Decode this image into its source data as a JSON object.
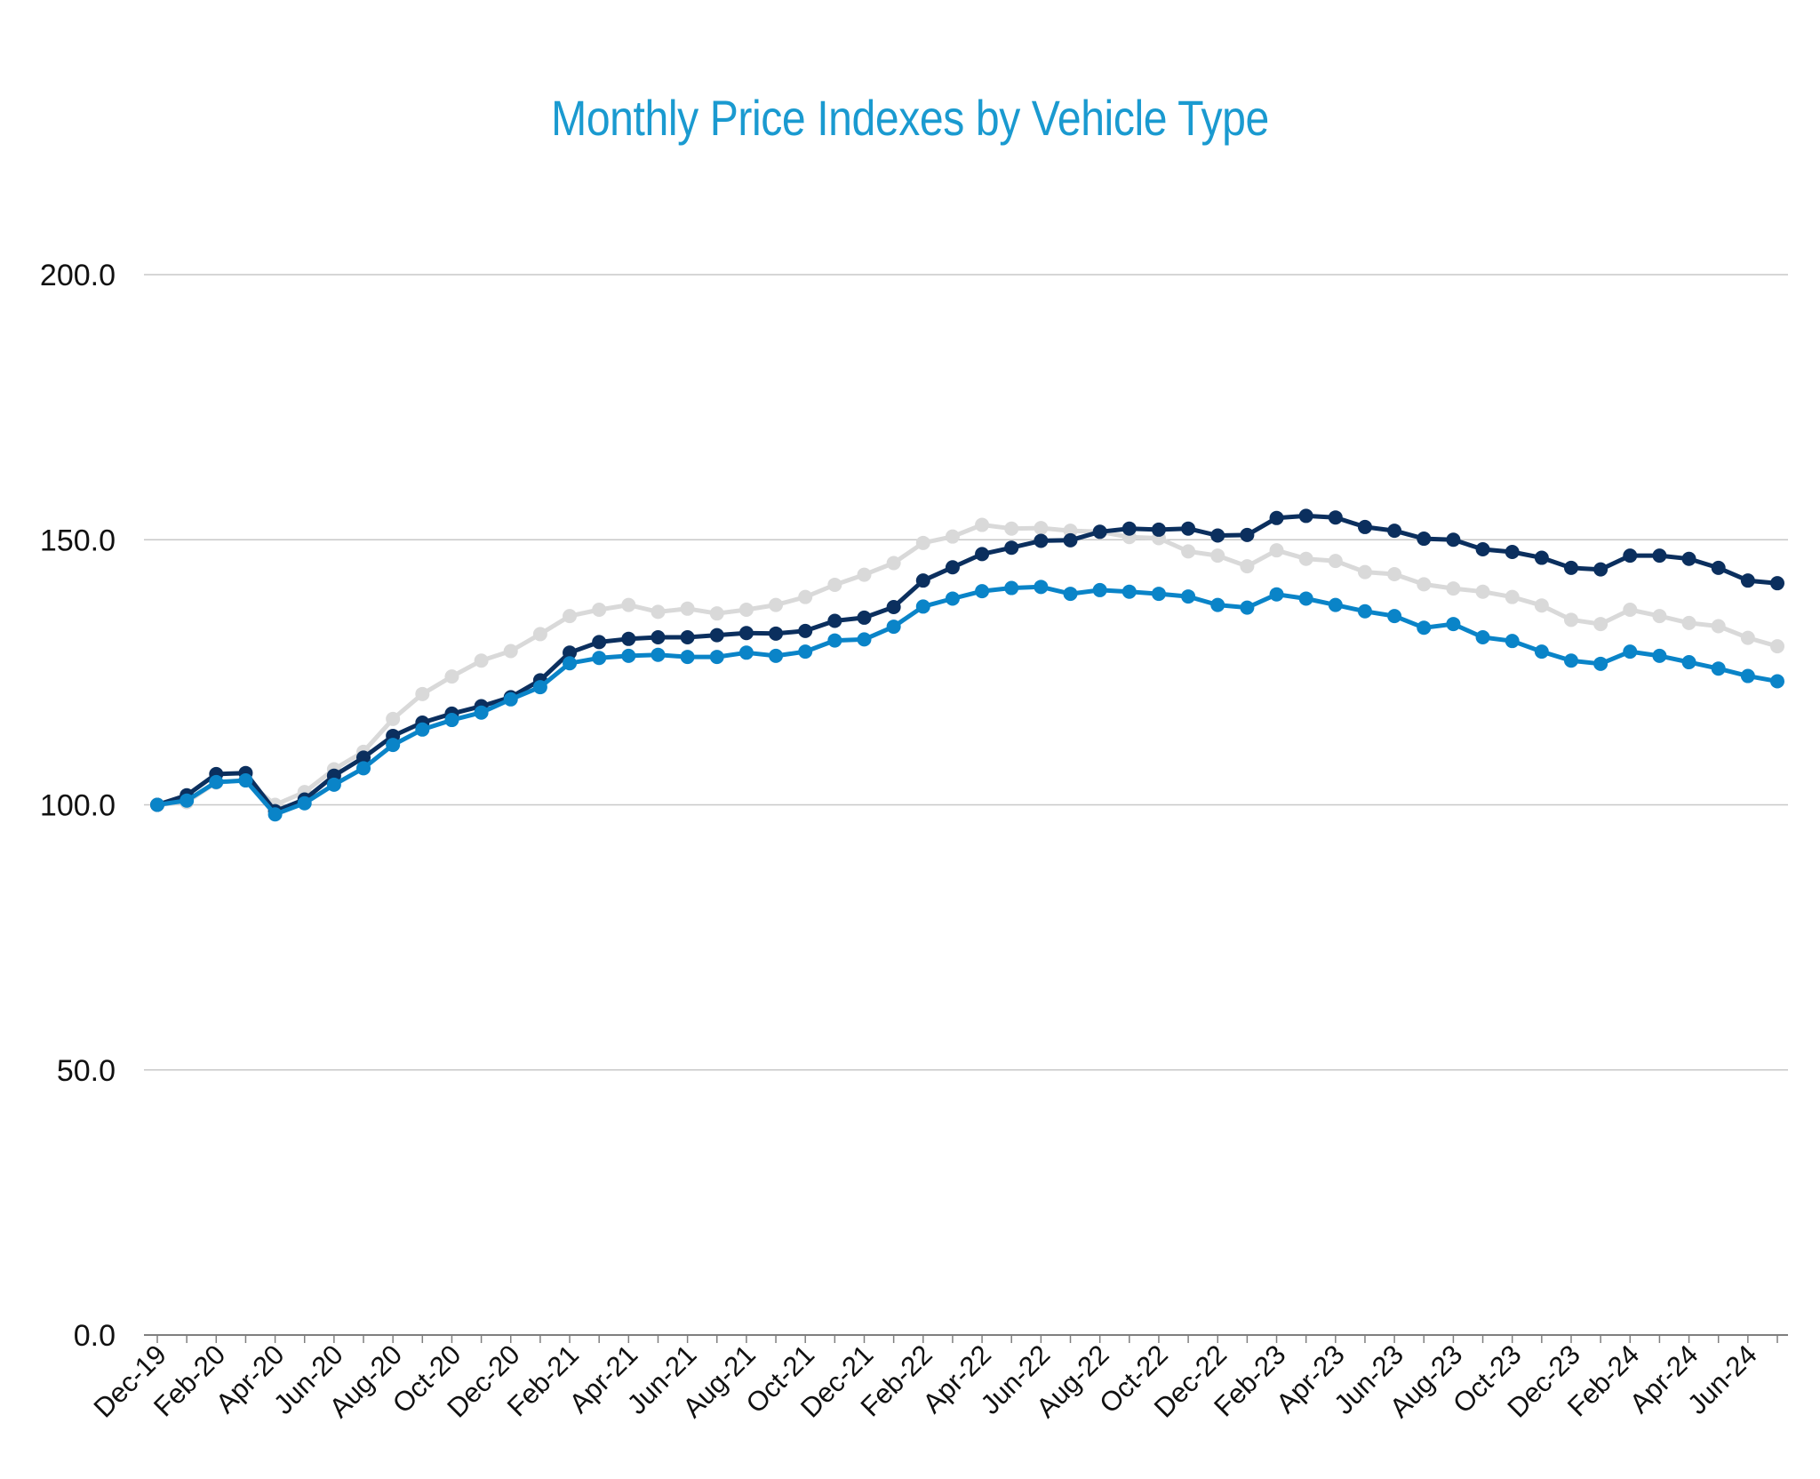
{
  "chart_data": {
    "type": "line",
    "title": "Monthly Price Indexes by Vehicle Type",
    "xlabel": "",
    "ylabel": "",
    "ylim": [
      0,
      200
    ],
    "yticks": [
      "0.0",
      "50.0",
      "100.0",
      "150.0",
      "200.0"
    ],
    "ytick_values": [
      0,
      50,
      100,
      150,
      200
    ],
    "grid": true,
    "categories": [
      "Dec-19",
      "Jan-20",
      "Feb-20",
      "Mar-20",
      "Apr-20",
      "May-20",
      "Jun-20",
      "Jul-20",
      "Aug-20",
      "Sep-20",
      "Oct-20",
      "Nov-20",
      "Dec-20",
      "Jan-21",
      "Feb-21",
      "Mar-21",
      "Apr-21",
      "May-21",
      "Jun-21",
      "Jul-21",
      "Aug-21",
      "Sep-21",
      "Oct-21",
      "Nov-21",
      "Dec-21",
      "Jan-22",
      "Feb-22",
      "Mar-22",
      "Apr-22",
      "May-22",
      "Jun-22",
      "Jul-22",
      "Aug-22",
      "Sep-22",
      "Oct-22",
      "Nov-22",
      "Dec-22",
      "Jan-23",
      "Feb-23",
      "Mar-23",
      "Apr-23",
      "May-23",
      "Jun-23",
      "Jul-23",
      "Aug-23",
      "Sep-23",
      "Oct-23",
      "Nov-23",
      "Dec-23",
      "Jan-24",
      "Feb-24",
      "Mar-24",
      "Apr-24",
      "May-24",
      "Jun-24",
      "Jul-24"
    ],
    "xtick_labels": [
      "Dec-19",
      "Feb-20",
      "Apr-20",
      "Jun-20",
      "Aug-20",
      "Oct-20",
      "Dec-20",
      "Feb-21",
      "Apr-21",
      "Jun-21",
      "Aug-21",
      "Oct-21",
      "Dec-21",
      "Feb-22",
      "Apr-22",
      "Jun-22",
      "Aug-22",
      "Oct-22",
      "Dec-22",
      "Feb-23",
      "Apr-23",
      "Jun-23",
      "Aug-23",
      "Oct-23",
      "Dec-23",
      "Feb-24",
      "Apr-24",
      "Jun-24"
    ],
    "series": [
      {
        "color": "#d9d9d9",
        "values": [
          100.0,
          100.5,
          104.2,
          104.7,
          100.0,
          102.4,
          106.7,
          110.0,
          116.2,
          120.9,
          124.2,
          127.2,
          129.0,
          132.2,
          135.6,
          136.8,
          137.7,
          136.4,
          137.0,
          136.1,
          136.8,
          137.7,
          139.2,
          141.5,
          143.4,
          145.6,
          149.4,
          150.6,
          152.8,
          152.1,
          152.2,
          151.7,
          151.5,
          150.5,
          150.3,
          147.8,
          147.0,
          145.0,
          148.0,
          146.4,
          146.0,
          143.9,
          143.5,
          141.6,
          140.8,
          140.2,
          139.2,
          137.6,
          134.9,
          134.1,
          136.8,
          135.6,
          134.3,
          133.7,
          131.5,
          129.9
        ]
      },
      {
        "color": "#0b2f5e",
        "values": [
          100.0,
          101.8,
          105.8,
          106.0,
          98.8,
          101.0,
          105.5,
          108.9,
          113.0,
          115.5,
          117.2,
          118.6,
          120.3,
          123.5,
          128.7,
          130.7,
          131.3,
          131.6,
          131.6,
          132.0,
          132.4,
          132.3,
          132.8,
          134.7,
          135.3,
          137.3,
          142.3,
          144.8,
          147.3,
          148.5,
          149.8,
          149.9,
          151.5,
          152.1,
          151.9,
          152.1,
          150.8,
          150.9,
          154.1,
          154.5,
          154.2,
          152.4,
          151.7,
          150.2,
          150.0,
          148.2,
          147.7,
          146.6,
          144.7,
          144.4,
          147.0,
          147.0,
          146.4,
          144.7,
          142.3,
          141.8
        ]
      },
      {
        "color": "#0a84c8",
        "values": [
          100.0,
          100.8,
          104.3,
          104.6,
          98.2,
          100.3,
          103.8,
          106.9,
          111.3,
          114.2,
          116.0,
          117.4,
          119.9,
          122.2,
          126.7,
          127.7,
          128.1,
          128.3,
          127.9,
          127.9,
          128.7,
          128.1,
          128.9,
          131.0,
          131.2,
          133.6,
          137.4,
          138.9,
          140.3,
          140.9,
          141.1,
          139.8,
          140.5,
          140.2,
          139.8,
          139.3,
          137.7,
          137.2,
          139.7,
          138.9,
          137.7,
          136.5,
          135.6,
          133.4,
          134.1,
          131.6,
          130.9,
          128.9,
          127.2,
          126.6,
          128.9,
          128.1,
          126.9,
          125.7,
          124.3,
          123.3
        ]
      }
    ]
  }
}
